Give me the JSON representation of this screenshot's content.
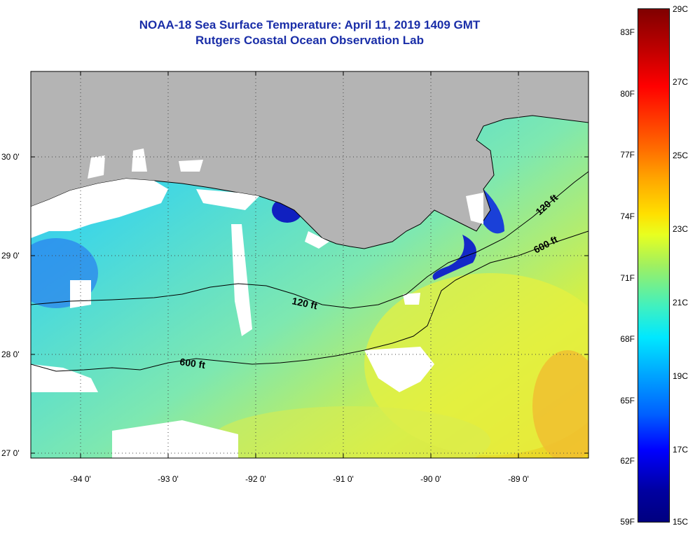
{
  "title": {
    "line1": "NOAA-18 Sea Surface Temperature:  April 11, 2019 1409 GMT",
    "line2": "Rutgers Coastal Ocean Observation Lab"
  },
  "axes": {
    "lat_labels": [
      "30 0'",
      "29 0'",
      "28 0'",
      "27 0'"
    ],
    "lon_labels": [
      "-94 0'",
      "-93 0'",
      "-92 0'",
      "-91 0'",
      "-90 0'",
      "-89 0'"
    ]
  },
  "contours": {
    "labels": [
      "120 ft",
      "600 ft",
      "120 ft",
      "600 ft"
    ]
  },
  "colorbar": {
    "fahrenheit": [
      "59F",
      "62F",
      "65F",
      "68F",
      "71F",
      "74F",
      "77F",
      "80F",
      "83F"
    ],
    "celsius": [
      "15C",
      "17C",
      "19C",
      "21C",
      "23C",
      "25C",
      "27C",
      "29C"
    ]
  },
  "colors": {
    "title": "#1a2ea8",
    "land": "#b4b4b4",
    "water": "#4ed8d8",
    "cloud": "#ffffff"
  }
}
